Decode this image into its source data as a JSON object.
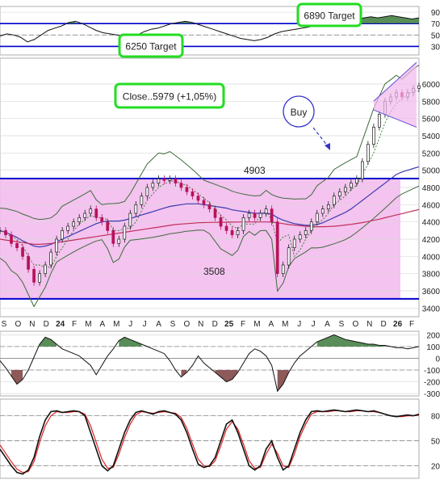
{
  "chart_data": [
    {
      "type": "line",
      "panel": "rsi",
      "yticks": [
        90,
        70,
        50,
        30
      ],
      "ylim": [
        15,
        100
      ],
      "grid": true,
      "reference_lines": [
        70,
        50,
        30
      ],
      "annotations": {
        "target_high": "6890 Target",
        "target_low": "6250 Target"
      },
      "series": [
        {
          "values": [
            48,
            52,
            50,
            46,
            38,
            42,
            50,
            58,
            62,
            66,
            72,
            74,
            70,
            64,
            58,
            54,
            52,
            50,
            48,
            46,
            50,
            56,
            60,
            62,
            66,
            70,
            72,
            74,
            72,
            68,
            64,
            60,
            56,
            52,
            48,
            44,
            42,
            40,
            42,
            46,
            52,
            56,
            58,
            60,
            62,
            64,
            66,
            68,
            70,
            72,
            74,
            76,
            78,
            80,
            82,
            80,
            82,
            84,
            82,
            80,
            78,
            80
          ]
        }
      ]
    },
    {
      "type": "candlestick",
      "panel": "price",
      "yticks": [
        6000,
        5800,
        5600,
        5400,
        5200,
        5000,
        4800,
        4600,
        4400,
        4200,
        4000,
        3800,
        3600,
        3400
      ],
      "ylim": [
        3300,
        6300
      ],
      "grid": true,
      "close_label": "Close..5979 (+1,05%)",
      "buy_label": "Buy",
      "level_high": {
        "value": 4903,
        "label": "4903"
      },
      "level_low": {
        "value": 3508,
        "label": "3508"
      },
      "series": [
        {
          "values": [
            4300,
            4250,
            4150,
            4100,
            4000,
            3850,
            3700,
            3800,
            3900,
            4050,
            4200,
            4300,
            4350,
            4400,
            4450,
            4500,
            4550,
            4450,
            4400,
            4300,
            4150,
            4200,
            4350,
            4500,
            4600,
            4700,
            4800,
            4850,
            4900,
            4880,
            4900,
            4850,
            4800,
            4750,
            4700,
            4650,
            4600,
            4550,
            4450,
            4350,
            4300,
            4250,
            4300,
            4450,
            4500,
            4450,
            4500,
            4550,
            4400,
            3800,
            3900,
            4100,
            4200,
            4250,
            4300,
            4400,
            4500,
            4550,
            4600,
            4700,
            4750,
            4800,
            4850,
            4900,
            5100,
            5300,
            5500,
            5650,
            5800,
            5850,
            5900,
            5850,
            5900,
            5950,
            5979
          ]
        },
        {
          "values": [
            4300,
            4280,
            4250,
            4220,
            4180,
            4150,
            4120,
            4110,
            4120,
            4140,
            4170,
            4200,
            4230,
            4260,
            4290,
            4320,
            4350,
            4380,
            4400,
            4410,
            4410,
            4410,
            4420,
            4440,
            4460,
            4480,
            4500,
            4520,
            4540,
            4560,
            4580,
            4590,
            4600,
            4610,
            4610,
            4610,
            4600,
            4590,
            4580,
            4570,
            4560,
            4540,
            4530,
            4520,
            4510,
            4500,
            4500,
            4500,
            4490,
            4450,
            4420,
            4400,
            4380,
            4370,
            4360,
            4360,
            4370,
            4390,
            4420,
            4450,
            4480,
            4510,
            4550,
            4600,
            4650,
            4700,
            4750,
            4800,
            4850,
            4900,
            4950,
            4980,
            5000,
            5020,
            5040
          ]
        },
        {
          "values": [
            4200,
            4190,
            4180,
            4170,
            4160,
            4150,
            4140,
            4140,
            4145,
            4150,
            4160,
            4170,
            4180,
            4190,
            4200,
            4210,
            4220,
            4230,
            4240,
            4250,
            4260,
            4270,
            4280,
            4290,
            4300,
            4310,
            4320,
            4330,
            4340,
            4350,
            4360,
            4370,
            4375,
            4380,
            4385,
            4390,
            4392,
            4394,
            4395,
            4396,
            4397,
            4398,
            4399,
            4400,
            4400,
            4400,
            4400,
            4400,
            4398,
            4390,
            4380,
            4370,
            4362,
            4356,
            4350,
            4346,
            4344,
            4344,
            4346,
            4350,
            4356,
            4364,
            4372,
            4382,
            4392,
            4404,
            4418,
            4432,
            4448,
            4464,
            4480,
            4496,
            4512,
            4528,
            4544
          ]
        }
      ],
      "xticks": [
        "S",
        "O",
        "N",
        "D",
        "24",
        "F",
        "M",
        "A",
        "M",
        "J",
        "J",
        "A",
        "S",
        "O",
        "N",
        "D",
        "25",
        "F",
        "M",
        "A",
        "M",
        "J",
        "J",
        "A",
        "S",
        "O",
        "N",
        "D",
        "26",
        "F"
      ]
    },
    {
      "type": "line",
      "panel": "cci",
      "yticks": [
        200,
        100,
        0,
        -100,
        -200,
        -300
      ],
      "ylim": [
        -320,
        230
      ],
      "grid": true,
      "reference_lines": [
        100,
        0,
        -100
      ],
      "series": [
        {
          "values": [
            -20,
            -80,
            -150,
            -220,
            -180,
            -100,
            10,
            120,
            180,
            160,
            120,
            80,
            60,
            40,
            20,
            -20,
            -60,
            -140,
            -60,
            20,
            80,
            150,
            180,
            160,
            140,
            120,
            100,
            80,
            60,
            40,
            -20,
            -100,
            -160,
            -120,
            -60,
            20,
            -40,
            -80,
            -120,
            -160,
            -200,
            -180,
            -120,
            -40,
            40,
            80,
            60,
            20,
            -60,
            -280,
            -220,
            -120,
            -40,
            20,
            60,
            100,
            140,
            160,
            180,
            200,
            180,
            160,
            150,
            140,
            130,
            120,
            120,
            110,
            110,
            100,
            90,
            90,
            80,
            90,
            100
          ]
        }
      ]
    },
    {
      "type": "line",
      "panel": "stochastic",
      "yticks": [
        80,
        50,
        20
      ],
      "ylim": [
        5,
        100
      ],
      "grid": true,
      "reference_lines": [
        80,
        50,
        20
      ],
      "series": [
        {
          "values": [
            40,
            30,
            20,
            12,
            10,
            15,
            30,
            55,
            75,
            85,
            86,
            84,
            85,
            86,
            85,
            80,
            60,
            40,
            20,
            14,
            20,
            40,
            60,
            75,
            84,
            86,
            84,
            82,
            85,
            86,
            84,
            82,
            75,
            60,
            40,
            22,
            18,
            20,
            30,
            50,
            70,
            75,
            60,
            40,
            20,
            15,
            20,
            40,
            50,
            30,
            15,
            20,
            40,
            60,
            75,
            85,
            86,
            85,
            86,
            87,
            86,
            85,
            86,
            87,
            86,
            85,
            86,
            84,
            82,
            80,
            79,
            80,
            81,
            80,
            82
          ]
        },
        {
          "values": [
            45,
            35,
            25,
            16,
            12,
            13,
            25,
            48,
            68,
            80,
            85,
            84,
            84,
            85,
            85,
            82,
            68,
            48,
            28,
            17,
            18,
            34,
            54,
            70,
            81,
            85,
            84,
            83,
            84,
            85,
            84,
            83,
            78,
            65,
            46,
            28,
            20,
            19,
            26,
            44,
            64,
            73,
            64,
            46,
            26,
            17,
            18,
            34,
            46,
            35,
            20,
            18,
            34,
            55,
            70,
            82,
            85,
            85,
            85,
            86,
            86,
            85,
            85,
            86,
            86,
            85,
            85,
            84,
            82,
            80,
            79,
            79,
            80,
            80,
            81
          ]
        }
      ]
    }
  ]
}
